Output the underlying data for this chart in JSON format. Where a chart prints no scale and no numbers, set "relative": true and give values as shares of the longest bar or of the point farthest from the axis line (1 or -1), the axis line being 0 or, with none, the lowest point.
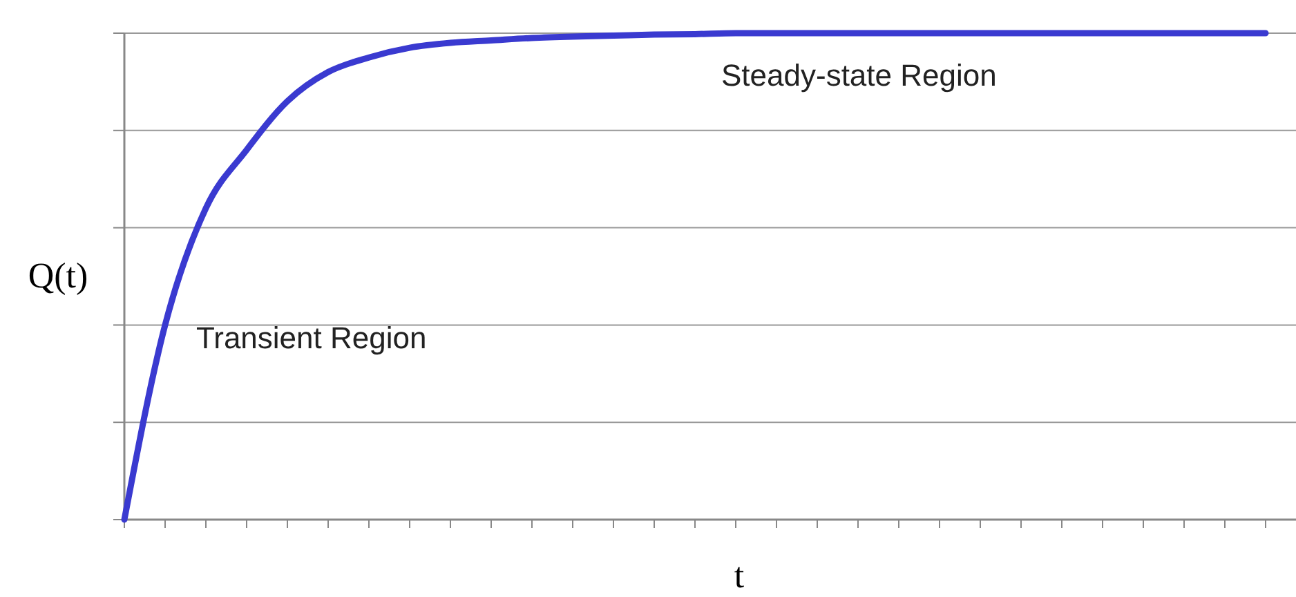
{
  "chart_data": {
    "type": "line",
    "relative": true,
    "xlabel": "t",
    "ylabel": "Q(t)",
    "categories": [
      null,
      null,
      null,
      null,
      null,
      null,
      null,
      null,
      null,
      null,
      null,
      null,
      null,
      null,
      null,
      null,
      null,
      null,
      null,
      null,
      null,
      null,
      null,
      null,
      null,
      null,
      null,
      null,
      null
    ],
    "series": [
      {
        "color": "#3a3ad0",
        "values": [
          0,
          0.4,
          0.64,
          0.76,
          0.86,
          0.92,
          0.95,
          0.97,
          0.98,
          0.985,
          0.99,
          0.993,
          0.995,
          0.997,
          0.998,
          1,
          1,
          1,
          1,
          1,
          1,
          1,
          1,
          1,
          1,
          1,
          1,
          1,
          1
        ]
      }
    ],
    "grid": "y",
    "marker": "none",
    "line_style": "solid",
    "annotations": [
      "Steady-state Region",
      "Transient Region"
    ]
  }
}
